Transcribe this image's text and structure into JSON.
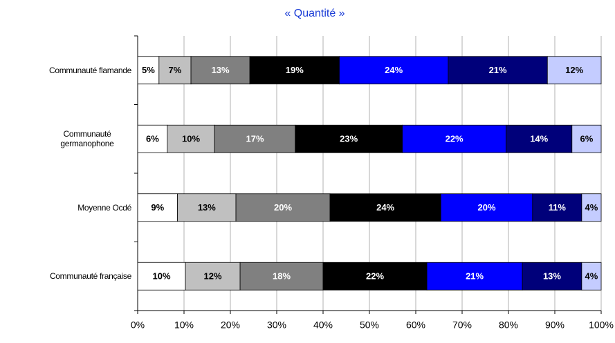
{
  "chart_data": {
    "type": "stacked-barh",
    "title": "« Quantité »",
    "categories": [
      "Communauté flamande",
      "Communauté germanophone",
      "Moyenne Ocdé",
      "Communauté française"
    ],
    "series": [
      {
        "color": "#ffffff",
        "text_color": "#000000",
        "values": [
          4.6,
          6.4,
          8.6,
          10.3
        ],
        "value_labels": [
          "5%",
          "6%",
          "9%",
          "10%"
        ]
      },
      {
        "color": "#c0c0c0",
        "text_color": "#000000",
        "values": [
          6.9,
          10.2,
          12.6,
          11.8
        ],
        "value_labels": [
          "7%",
          "10%",
          "13%",
          "12%"
        ]
      },
      {
        "color": "#808080",
        "text_color": "#ffffff",
        "values": [
          12.7,
          17.4,
          20.3,
          17.9
        ],
        "value_labels": [
          "13%",
          "17%",
          "20%",
          "18%"
        ]
      },
      {
        "color": "#000000",
        "text_color": "#ffffff",
        "values": [
          19.3,
          23.1,
          23.9,
          22.4
        ],
        "value_labels": [
          "19%",
          "23%",
          "24%",
          "22%"
        ]
      },
      {
        "color": "#0000ff",
        "text_color": "#ffffff",
        "values": [
          23.5,
          22.4,
          19.8,
          20.6
        ],
        "value_labels": [
          "24%",
          "22%",
          "20%",
          "21%"
        ]
      },
      {
        "color": "#00007a",
        "text_color": "#ffffff",
        "values": [
          21.4,
          14.2,
          10.6,
          12.8
        ],
        "value_labels": [
          "21%",
          "14%",
          "11%",
          "13%"
        ]
      },
      {
        "color": "#c4ccff",
        "text_color": "#000000",
        "values": [
          11.6,
          6.3,
          4.2,
          4.2
        ],
        "value_labels": [
          "12%",
          "6%",
          "4%",
          "4%"
        ]
      }
    ],
    "xlim": [
      0,
      100
    ],
    "xticks": [
      {
        "value": 0,
        "label": "0%"
      },
      {
        "value": 10,
        "label": "10%"
      },
      {
        "value": 20,
        "label": "20%"
      },
      {
        "value": 30,
        "label": "30%"
      },
      {
        "value": 40,
        "label": "40%"
      },
      {
        "value": 50,
        "label": "50%"
      },
      {
        "value": 60,
        "label": "60%"
      },
      {
        "value": 70,
        "label": "70%"
      },
      {
        "value": 80,
        "label": "80%"
      },
      {
        "value": 90,
        "label": "90%"
      },
      {
        "value": 100,
        "label": "100%"
      }
    ],
    "grid": true
  }
}
